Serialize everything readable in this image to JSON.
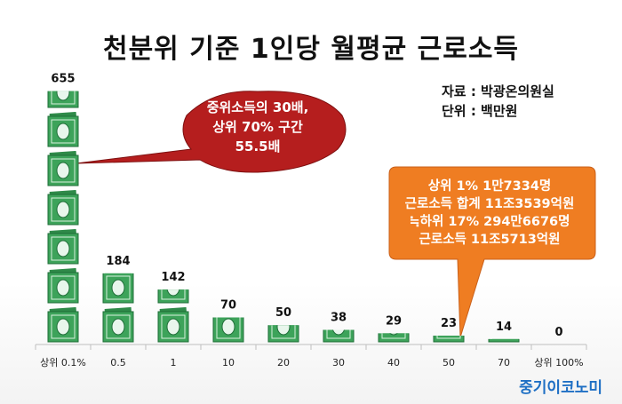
{
  "title": "천분위 기준 1인당 월평균 근로소득",
  "source": {
    "line1": "자료 : 박광온의원실",
    "line2": "단위 : 백만원"
  },
  "brand": "중기이코노미",
  "callouts": {
    "red": {
      "lines": [
        "중위소득의 30배,",
        "상위 70% 구간",
        "55.5배"
      ],
      "color": "#b51e1e"
    },
    "orange": {
      "lines": [
        "상위 1% 1만7334명",
        "근로소득 합계 11조3539억원",
        "≒하위 17% 294만6676명",
        "근로소득 11조5713억원"
      ],
      "color": "#ef7d22"
    }
  },
  "chart_data": {
    "type": "bar",
    "categories": [
      "상위 0.1%",
      "0.5",
      "1",
      "10",
      "20",
      "30",
      "40",
      "50",
      "70",
      "상위 100%"
    ],
    "values": [
      655,
      184,
      142,
      70,
      50,
      38,
      29,
      23,
      14,
      0
    ],
    "value_labels": [
      "655",
      "184",
      "142",
      "70",
      "50",
      "38",
      "29",
      "23",
      "14",
      "0"
    ],
    "ylim": [
      0,
      700
    ],
    "marker": "money-bill-icon",
    "bill_color": "#3da35a"
  }
}
